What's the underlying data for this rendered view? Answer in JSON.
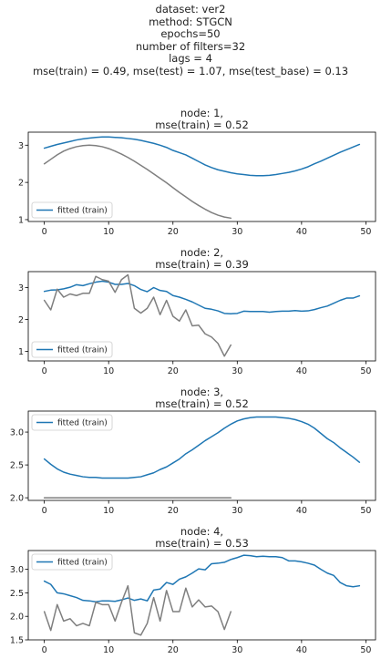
{
  "suptitle": [
    "dataset: ver2",
    "method: STGCN",
    "epochs=50",
    "number of filters=32",
    "lags = 4",
    "mse(train) = 0.49, mse(test) = 1.07, mse(test_base) = 0.13"
  ],
  "colors": {
    "fitted": "#1f77b4",
    "observed": "#7f7f7f"
  },
  "chart_data": [
    {
      "type": "line",
      "title": [
        "node: 1,",
        "mse(train) = 0.52"
      ],
      "xlim": [
        -2.5,
        51.5
      ],
      "ylim": [
        0.95,
        3.35
      ],
      "xticks": [
        0,
        10,
        20,
        30,
        40,
        50
      ],
      "yticks": [
        1,
        2,
        3
      ],
      "ytick_labels": [
        "1",
        "2",
        "3"
      ],
      "legend": {
        "location": "lower-left",
        "entries": [
          "fitted (train)"
        ]
      },
      "series": [
        {
          "name": "fitted (train)",
          "role": "fitted",
          "x": [
            0,
            1,
            2,
            3,
            4,
            5,
            6,
            7,
            8,
            9,
            10,
            11,
            12,
            13,
            14,
            15,
            16,
            17,
            18,
            19,
            20,
            21,
            22,
            23,
            24,
            25,
            26,
            27,
            28,
            29,
            30,
            31,
            32,
            33,
            34,
            35,
            36,
            37,
            38,
            39,
            40,
            41,
            42,
            43,
            44,
            45,
            46,
            47,
            48,
            49
          ],
          "y": [
            2.92,
            2.97,
            3.02,
            3.06,
            3.1,
            3.14,
            3.17,
            3.19,
            3.21,
            3.22,
            3.22,
            3.21,
            3.2,
            3.18,
            3.16,
            3.13,
            3.09,
            3.05,
            3.0,
            2.94,
            2.86,
            2.8,
            2.74,
            2.65,
            2.56,
            2.47,
            2.4,
            2.34,
            2.3,
            2.26,
            2.23,
            2.21,
            2.19,
            2.18,
            2.18,
            2.19,
            2.21,
            2.24,
            2.27,
            2.31,
            2.36,
            2.42,
            2.5,
            2.57,
            2.65,
            2.73,
            2.81,
            2.88,
            2.95,
            3.02
          ]
        },
        {
          "role": "observed",
          "x": [
            0,
            1,
            2,
            3,
            4,
            5,
            6,
            7,
            8,
            9,
            10,
            11,
            12,
            13,
            14,
            15,
            16,
            17,
            18,
            19,
            20,
            21,
            22,
            23,
            24,
            25,
            26,
            27,
            28,
            29
          ],
          "y": [
            2.5,
            2.62,
            2.74,
            2.84,
            2.91,
            2.96,
            2.99,
            3.0,
            2.99,
            2.96,
            2.91,
            2.84,
            2.76,
            2.67,
            2.57,
            2.46,
            2.35,
            2.23,
            2.11,
            1.99,
            1.86,
            1.73,
            1.61,
            1.49,
            1.38,
            1.28,
            1.19,
            1.12,
            1.07,
            1.04
          ]
        }
      ]
    },
    {
      "type": "line",
      "title": [
        "node: 2,",
        "mse(train) = 0.39"
      ],
      "xlim": [
        -2.5,
        51.5
      ],
      "ylim": [
        0.7,
        3.5
      ],
      "xticks": [
        0,
        10,
        20,
        30,
        40,
        50
      ],
      "yticks": [
        1,
        2,
        3
      ],
      "ytick_labels": [
        "1",
        "2",
        "3"
      ],
      "legend": {
        "location": "lower-left",
        "entries": [
          "fitted (train)"
        ]
      },
      "series": [
        {
          "name": "fitted (train)",
          "role": "fitted",
          "x": [
            0,
            1,
            2,
            3,
            4,
            5,
            6,
            7,
            8,
            9,
            10,
            11,
            12,
            13,
            14,
            15,
            16,
            17,
            18,
            19,
            20,
            21,
            22,
            23,
            24,
            25,
            26,
            27,
            28,
            29,
            30,
            31,
            32,
            33,
            34,
            35,
            36,
            37,
            38,
            39,
            40,
            41,
            42,
            43,
            44,
            45,
            46,
            47,
            48,
            49
          ],
          "y": [
            2.88,
            2.92,
            2.93,
            2.96,
            3.01,
            3.09,
            3.06,
            3.12,
            3.17,
            3.2,
            3.17,
            3.1,
            3.1,
            3.13,
            3.06,
            2.94,
            2.87,
            3.0,
            2.91,
            2.88,
            2.75,
            2.7,
            2.63,
            2.55,
            2.45,
            2.35,
            2.32,
            2.27,
            2.19,
            2.18,
            2.19,
            2.26,
            2.25,
            2.25,
            2.25,
            2.23,
            2.25,
            2.26,
            2.26,
            2.28,
            2.26,
            2.27,
            2.31,
            2.37,
            2.42,
            2.51,
            2.6,
            2.67,
            2.67,
            2.74
          ]
        },
        {
          "role": "observed",
          "x": [
            0,
            1,
            2,
            3,
            4,
            5,
            6,
            7,
            8,
            9,
            10,
            11,
            12,
            13,
            14,
            15,
            16,
            17,
            18,
            19,
            20,
            21,
            22,
            23,
            24,
            25,
            26,
            27,
            28,
            29
          ],
          "y": [
            2.6,
            2.3,
            2.95,
            2.7,
            2.8,
            2.75,
            2.82,
            2.82,
            3.35,
            3.25,
            3.2,
            2.85,
            3.25,
            3.4,
            2.35,
            2.2,
            2.35,
            2.7,
            2.15,
            2.6,
            2.1,
            1.95,
            2.3,
            1.8,
            1.82,
            1.55,
            1.45,
            1.25,
            0.85,
            1.2
          ]
        }
      ]
    },
    {
      "type": "line",
      "title": [
        "node: 3,",
        "mse(train) = 0.52"
      ],
      "xlim": [
        -2.5,
        51.5
      ],
      "ylim": [
        1.96,
        3.32
      ],
      "xticks": [
        0,
        10,
        20,
        30,
        40,
        50
      ],
      "yticks": [
        2.0,
        2.5,
        3.0
      ],
      "ytick_labels": [
        "2.0",
        "2.5",
        "3.0"
      ],
      "legend": {
        "location": "upper-left",
        "entries": [
          "fitted (train)"
        ]
      },
      "series": [
        {
          "name": "fitted (train)",
          "role": "fitted",
          "x": [
            0,
            1,
            2,
            3,
            4,
            5,
            6,
            7,
            8,
            9,
            10,
            11,
            12,
            13,
            14,
            15,
            16,
            17,
            18,
            19,
            20,
            21,
            22,
            23,
            24,
            25,
            26,
            27,
            28,
            29,
            30,
            31,
            32,
            33,
            34,
            35,
            36,
            37,
            38,
            39,
            40,
            41,
            42,
            43,
            44,
            45,
            46,
            47,
            48,
            49
          ],
          "y": [
            2.59,
            2.51,
            2.44,
            2.39,
            2.36,
            2.34,
            2.32,
            2.31,
            2.31,
            2.3,
            2.3,
            2.3,
            2.3,
            2.3,
            2.31,
            2.32,
            2.35,
            2.38,
            2.43,
            2.47,
            2.53,
            2.59,
            2.67,
            2.73,
            2.8,
            2.87,
            2.93,
            2.99,
            3.06,
            3.12,
            3.17,
            3.2,
            3.22,
            3.23,
            3.23,
            3.23,
            3.23,
            3.22,
            3.21,
            3.19,
            3.16,
            3.12,
            3.06,
            2.98,
            2.9,
            2.84,
            2.76,
            2.69,
            2.62,
            2.54
          ]
        },
        {
          "role": "observed",
          "x": [
            0,
            29
          ],
          "y": [
            2.0,
            2.0
          ]
        }
      ]
    },
    {
      "type": "line",
      "title": [
        "node: 4,",
        "mse(train) = 0.53"
      ],
      "xlim": [
        -2.5,
        51.5
      ],
      "ylim": [
        1.5,
        3.4
      ],
      "xticks": [
        0,
        10,
        20,
        30,
        40,
        50
      ],
      "yticks": [
        1.5,
        2.0,
        2.5,
        3.0
      ],
      "ytick_labels": [
        "1.5",
        "2.0",
        "2.5",
        "3.0"
      ],
      "legend": {
        "location": "upper-left",
        "entries": [
          "fitted (train)"
        ]
      },
      "series": [
        {
          "name": "fitted (train)",
          "role": "fitted",
          "x": [
            0,
            1,
            2,
            3,
            4,
            5,
            6,
            7,
            8,
            9,
            10,
            11,
            12,
            13,
            14,
            15,
            16,
            17,
            18,
            19,
            20,
            21,
            22,
            23,
            24,
            25,
            26,
            27,
            28,
            29,
            30,
            31,
            32,
            33,
            34,
            35,
            36,
            37,
            38,
            39,
            40,
            41,
            42,
            43,
            44,
            45,
            46,
            47,
            48,
            49
          ],
          "y": [
            2.75,
            2.68,
            2.5,
            2.48,
            2.44,
            2.4,
            2.34,
            2.33,
            2.31,
            2.33,
            2.33,
            2.32,
            2.35,
            2.39,
            2.34,
            2.37,
            2.33,
            2.56,
            2.58,
            2.72,
            2.68,
            2.79,
            2.84,
            2.92,
            3.01,
            2.99,
            3.12,
            3.13,
            3.15,
            3.21,
            3.25,
            3.3,
            3.29,
            3.27,
            3.28,
            3.27,
            3.27,
            3.25,
            3.18,
            3.18,
            3.16,
            3.13,
            3.09,
            3.0,
            2.92,
            2.87,
            2.72,
            2.65,
            2.63,
            2.65
          ]
        },
        {
          "role": "observed",
          "x": [
            0,
            1,
            2,
            3,
            4,
            5,
            6,
            7,
            8,
            9,
            10,
            11,
            12,
            13,
            14,
            15,
            16,
            17,
            18,
            19,
            20,
            21,
            22,
            23,
            24,
            25,
            26,
            27,
            28,
            29
          ],
          "y": [
            2.1,
            1.7,
            2.25,
            1.9,
            1.95,
            1.8,
            1.85,
            1.8,
            2.3,
            2.25,
            2.25,
            1.9,
            2.3,
            2.65,
            1.65,
            1.6,
            1.85,
            2.4,
            1.9,
            2.55,
            2.1,
            2.1,
            2.6,
            2.2,
            2.35,
            2.2,
            2.22,
            2.1,
            1.72,
            2.1
          ]
        }
      ]
    }
  ]
}
